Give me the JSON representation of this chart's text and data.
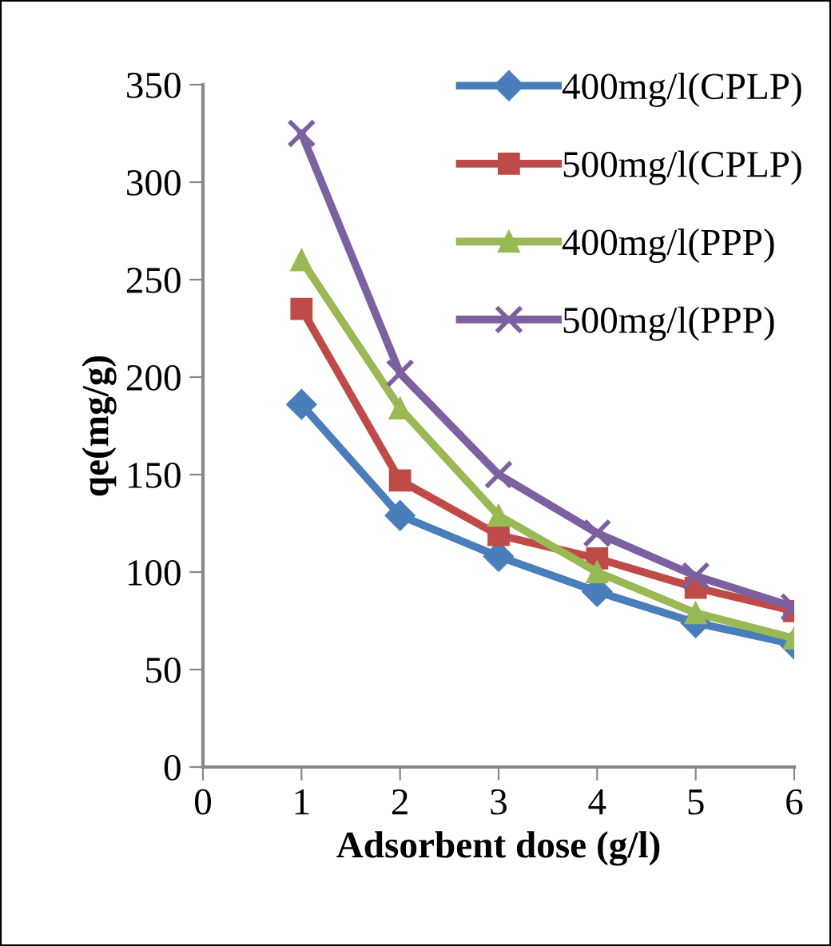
{
  "chart_data": {
    "type": "line",
    "xlabel": "Adsorbent dose (g/l)",
    "ylabel": "qe(mg/g)",
    "x": [
      1,
      2,
      3,
      4,
      5,
      6
    ],
    "series": [
      {
        "name": "400mg/l(CPLP)",
        "color": "#4a7ebb",
        "marker": "diamond",
        "values": [
          186,
          129,
          108,
          90,
          74,
          63
        ]
      },
      {
        "name": "500mg/l(CPLP)",
        "color": "#be4b48",
        "marker": "square",
        "values": [
          235,
          147,
          119,
          107,
          92,
          80
        ]
      },
      {
        "name": "400mg/l(PPP)",
        "color": "#98b954",
        "marker": "triangle",
        "values": [
          260,
          184,
          129,
          100,
          79,
          66
        ]
      },
      {
        "name": "500mg/l(PPP)",
        "color": "#7d60a0",
        "marker": "cross",
        "values": [
          325,
          202,
          150,
          120,
          98,
          82
        ]
      }
    ],
    "xlim": [
      0,
      6
    ],
    "xticks": [
      0,
      1,
      2,
      3,
      4,
      5,
      6
    ],
    "ylim": [
      0,
      350
    ],
    "yticks": [
      0,
      50,
      100,
      150,
      200,
      250,
      300,
      350
    ],
    "grid": false,
    "legend": "top right",
    "line_style": "solid"
  }
}
